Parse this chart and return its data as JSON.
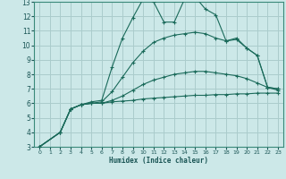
{
  "title": "",
  "xlabel": "Humidex (Indice chaleur)",
  "xlim": [
    -0.5,
    23.5
  ],
  "ylim": [
    3,
    13
  ],
  "yticks": [
    3,
    4,
    5,
    6,
    7,
    8,
    9,
    10,
    11,
    12,
    13
  ],
  "xticks": [
    0,
    1,
    2,
    3,
    4,
    5,
    6,
    7,
    8,
    9,
    10,
    11,
    12,
    13,
    14,
    15,
    16,
    17,
    18,
    19,
    20,
    21,
    22,
    23
  ],
  "bg_color": "#cce8e8",
  "grid_color": "#aacccc",
  "line_color": "#1a6a5a",
  "lines": [
    {
      "x": [
        0,
        2,
        3,
        4,
        5,
        6,
        7,
        8,
        9,
        10,
        11,
        12,
        13,
        14,
        15,
        16,
        17,
        18,
        19,
        20,
        21,
        22,
        23
      ],
      "y": [
        3,
        4,
        5.6,
        5.9,
        6.1,
        6.2,
        8.5,
        10.5,
        11.9,
        13.2,
        13.0,
        11.6,
        11.6,
        13.2,
        13.35,
        12.5,
        12.1,
        10.3,
        10.5,
        9.8,
        9.3,
        7.1,
        7.0
      ]
    },
    {
      "x": [
        0,
        2,
        3,
        4,
        5,
        6,
        7,
        8,
        9,
        10,
        11,
        12,
        13,
        14,
        15,
        16,
        17,
        18,
        19,
        20,
        21,
        22,
        23
      ],
      "y": [
        3,
        4,
        5.6,
        5.9,
        6.0,
        6.1,
        6.8,
        7.8,
        8.8,
        9.6,
        10.2,
        10.5,
        10.7,
        10.8,
        10.9,
        10.8,
        10.5,
        10.3,
        10.4,
        9.8,
        9.3,
        7.1,
        7.0
      ]
    },
    {
      "x": [
        0,
        2,
        3,
        4,
        5,
        6,
        7,
        8,
        9,
        10,
        11,
        12,
        13,
        14,
        15,
        16,
        17,
        18,
        19,
        20,
        21,
        22,
        23
      ],
      "y": [
        3,
        4,
        5.6,
        5.9,
        6.0,
        6.0,
        6.2,
        6.5,
        6.9,
        7.3,
        7.6,
        7.8,
        8.0,
        8.1,
        8.2,
        8.2,
        8.1,
        8.0,
        7.9,
        7.7,
        7.4,
        7.1,
        6.9
      ]
    },
    {
      "x": [
        0,
        2,
        3,
        4,
        5,
        6,
        7,
        8,
        9,
        10,
        11,
        12,
        13,
        14,
        15,
        16,
        17,
        18,
        19,
        20,
        21,
        22,
        23
      ],
      "y": [
        3,
        4,
        5.6,
        5.9,
        6.0,
        6.0,
        6.1,
        6.15,
        6.2,
        6.3,
        6.35,
        6.4,
        6.45,
        6.5,
        6.55,
        6.55,
        6.6,
        6.6,
        6.65,
        6.65,
        6.7,
        6.7,
        6.7
      ]
    }
  ]
}
